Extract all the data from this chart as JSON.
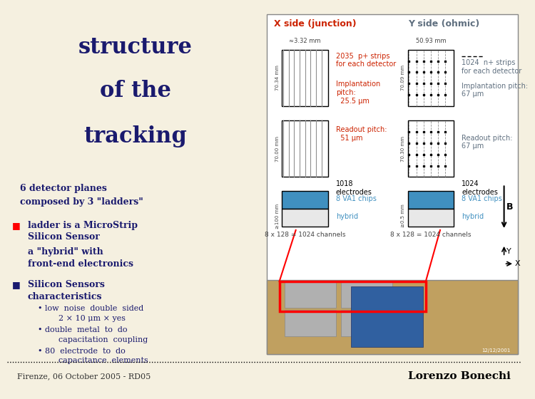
{
  "bg_color": "#f5f0e0",
  "left_panel_bg": "#c8f0f0",
  "right_panel_bg": "#f5f0e0",
  "left_text_bg": "#d8e8a0",
  "title_color": "#1a1a6e",
  "x_side_title": "X side (junction)",
  "y_side_title": "Y side (ohmic)",
  "x_strips": "2035  p+ strips\nfor each detector",
  "x_impl_pitch": "Implantation\npitch:\n  25.5 μm",
  "x_readout_pitch": "Readout pitch:\n  51 μm",
  "x_electrodes": "1018\nelectrodes",
  "x_va1": "8 VA1 chips",
  "x_hybrid": "hybrid",
  "x_channels": "8 x 128 = 1024 channels",
  "y_strips": "1024  n+ strips\nfor each detector",
  "y_impl_pitch": "Implantation pitch:\n67 μm",
  "y_readout_pitch": "Readout pitch:\n67 μm",
  "y_electrodes": "1024\nelectrodes",
  "y_va1": "8 VA1 chips",
  "y_hybrid": "hybrid",
  "y_channels": "8 x 128 = 1024 channels",
  "footer_left": "Firenze, 06 October 2005 - RD05",
  "footer_right": "Lorenzo Bonechi",
  "hybrid_color": "#4090c0",
  "annotation_color": "#cc2200",
  "y_annotation_color": "#607080"
}
